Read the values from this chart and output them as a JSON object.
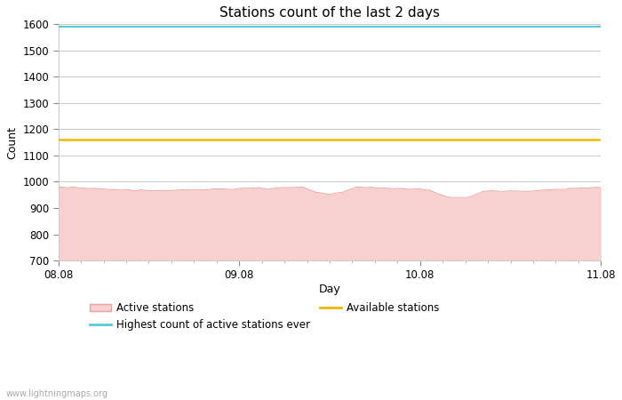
{
  "title": "Stations count of the last 2 days",
  "xlabel": "Day",
  "ylabel": "Count",
  "ylim": [
    700,
    1600
  ],
  "yticks": [
    700,
    800,
    900,
    1000,
    1100,
    1200,
    1300,
    1400,
    1500,
    1600
  ],
  "xtick_labels": [
    "08.08",
    "09.08",
    "10.08",
    "11.08"
  ],
  "xtick_positions": [
    0,
    1,
    2,
    3
  ],
  "highest_count_ever": 1590,
  "available_stations": 1160,
  "active_stations_base": 975,
  "active_color_fill": "#f9d0d0",
  "active_color_line": "#e8a0a0",
  "highest_color": "#55ccdd",
  "available_color": "#f0b800",
  "background_color": "#ffffff",
  "grid_color": "#cccccc",
  "title_fontsize": 11,
  "axis_fontsize": 9,
  "tick_fontsize": 8.5,
  "legend_fontsize": 8.5,
  "watermark": "www.lightningmaps.org",
  "n_points": 2000
}
